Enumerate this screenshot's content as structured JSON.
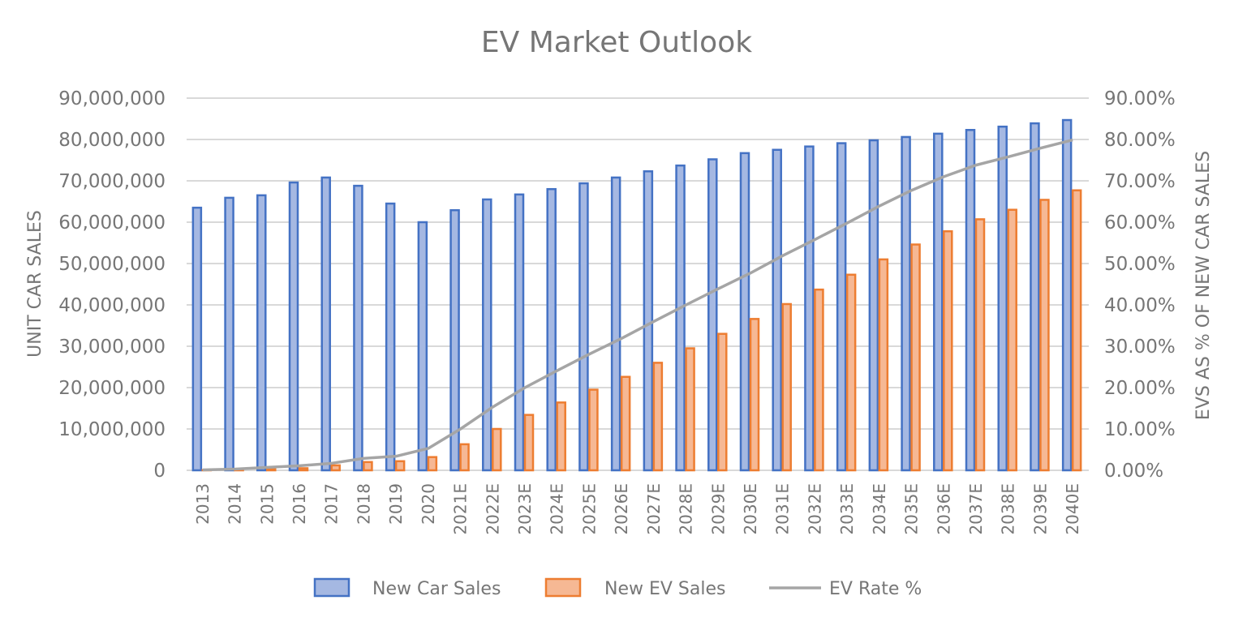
{
  "chart_data": {
    "type": "bar",
    "title": "EV Market Outlook",
    "xlabel": "",
    "ylabel": "UNIT CAR SALES",
    "y2label": "EVS AS % OF NEW CAR SALES",
    "ylim": [
      0,
      90000000
    ],
    "y2lim": [
      0,
      0.9
    ],
    "grid": true,
    "legend_position": "bottom",
    "y_ticks": [
      "0",
      "10,000,000",
      "20,000,000",
      "30,000,000",
      "40,000,000",
      "50,000,000",
      "60,000,000",
      "70,000,000",
      "80,000,000",
      "90,000,000"
    ],
    "y2_ticks": [
      "0.00%",
      "10.00%",
      "20.00%",
      "30.00%",
      "40.00%",
      "50.00%",
      "60.00%",
      "70.00%",
      "80.00%",
      "90.00%"
    ],
    "categories": [
      "2013",
      "2014",
      "2015",
      "2016",
      "2017",
      "2018",
      "2019",
      "2020",
      "2021E",
      "2022E",
      "2023E",
      "2024E",
      "2025E",
      "2026E",
      "2027E",
      "2028E",
      "2029E",
      "2030E",
      "2031E",
      "2032E",
      "2033E",
      "2034E",
      "2035E",
      "2036E",
      "2037E",
      "2038E",
      "2039E",
      "2040E"
    ],
    "series": [
      {
        "name": "New Car Sales",
        "type": "bar",
        "axis": "left",
        "color": "#4472C4",
        "fill": "#A5B8E2",
        "values": [
          63500000,
          65900000,
          66500000,
          69600000,
          70800000,
          68800000,
          64500000,
          60000000,
          62900000,
          65500000,
          66700000,
          68000000,
          69400000,
          70800000,
          72300000,
          73700000,
          75200000,
          76700000,
          77500000,
          78300000,
          79100000,
          79800000,
          80600000,
          81400000,
          82300000,
          83100000,
          83900000,
          84700000
        ]
      },
      {
        "name": "New EV Sales",
        "type": "bar",
        "axis": "left",
        "color": "#ED7D31",
        "fill": "#F6B894",
        "values": [
          50000,
          100000,
          300000,
          500000,
          1200000,
          2000000,
          2200000,
          3200000,
          6300000,
          10000000,
          13400000,
          16400000,
          19500000,
          22600000,
          26000000,
          29500000,
          33000000,
          36600000,
          40200000,
          43700000,
          47300000,
          51000000,
          54600000,
          57800000,
          60700000,
          63000000,
          65400000,
          67700000
        ]
      },
      {
        "name": "EV Rate %",
        "type": "line",
        "axis": "right",
        "color": "#A5A5A5",
        "values": [
          0.001,
          0.003,
          0.007,
          0.011,
          0.017,
          0.029,
          0.034,
          0.053,
          0.1,
          0.153,
          0.2,
          0.241,
          0.281,
          0.319,
          0.36,
          0.4,
          0.439,
          0.477,
          0.519,
          0.558,
          0.598,
          0.639,
          0.677,
          0.71,
          0.738,
          0.758,
          0.779,
          0.799
        ]
      }
    ]
  }
}
